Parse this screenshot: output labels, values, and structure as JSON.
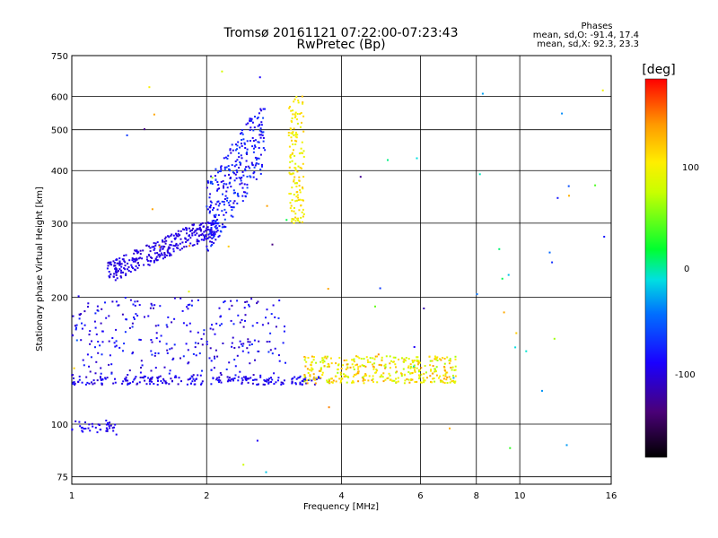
{
  "chart_data": {
    "type": "scatter",
    "title": "Tromsø 20161121 07:22:00-07:23:43",
    "subtitle": "RwPretec (Bp)",
    "xlabel": "Frequency [MHz]",
    "ylabel": "Stationary phase Virtual Height [km]",
    "x_scale": "log",
    "y_scale": "log",
    "xlim": [
      1,
      16
    ],
    "ylim": [
      72,
      750
    ],
    "x_ticks": [
      "1",
      "2",
      "4",
      "6",
      "8",
      "10",
      "16"
    ],
    "y_ticks": [
      "75",
      "100",
      "200",
      "300",
      "400",
      "500",
      "600",
      "750"
    ],
    "grid": true,
    "colorbar": {
      "label": "[deg]",
      "range": [
        -180,
        180
      ],
      "ticks": [
        "100",
        "0",
        "-100"
      ]
    },
    "stats": {
      "heading": "Phases",
      "line_o": "mean, sd,O: -91.4, 17.4",
      "line_x": "mean, sd,X:  92.3, 23.3"
    },
    "clusters": [
      {
        "note": "E/Es low trace",
        "x": [
          1.0,
          1.25
        ],
        "y": [
          95,
          102
        ],
        "phase": [
          -105,
          -85
        ],
        "n": 40
      },
      {
        "note": "E layer trace",
        "x": [
          1.0,
          3.6
        ],
        "y": [
          124,
          130
        ],
        "phase": [
          -110,
          -80
        ],
        "n": 220
      },
      {
        "note": "E-region scatter",
        "x": [
          1.0,
          3.0
        ],
        "y": [
          130,
          200
        ],
        "phase": [
          -115,
          -70
        ],
        "n": 280
      },
      {
        "note": "O-mode F trace",
        "x": [
          1.2,
          2.1
        ],
        "y": [
          215,
          300
        ],
        "phase": [
          -110,
          -90
        ],
        "n": 320
      },
      {
        "note": "O-mode F cusp",
        "x": [
          2.0,
          2.7
        ],
        "y": [
          250,
          560
        ],
        "phase": [
          -105,
          -60
        ],
        "n": 300
      },
      {
        "note": "X-mode F cusp",
        "x": [
          3.05,
          3.3
        ],
        "y": [
          300,
          600
        ],
        "phase": [
          80,
          120
        ],
        "n": 140
      },
      {
        "note": "X-mode E trace",
        "x": [
          3.3,
          7.2
        ],
        "y": [
          125,
          145
        ],
        "phase": [
          60,
          140
        ],
        "n": 380
      },
      {
        "note": "sparse noise",
        "x": [
          1.0,
          16.0
        ],
        "y": [
          76,
          740
        ],
        "phase": [
          -150,
          150
        ],
        "n": 60
      }
    ]
  }
}
